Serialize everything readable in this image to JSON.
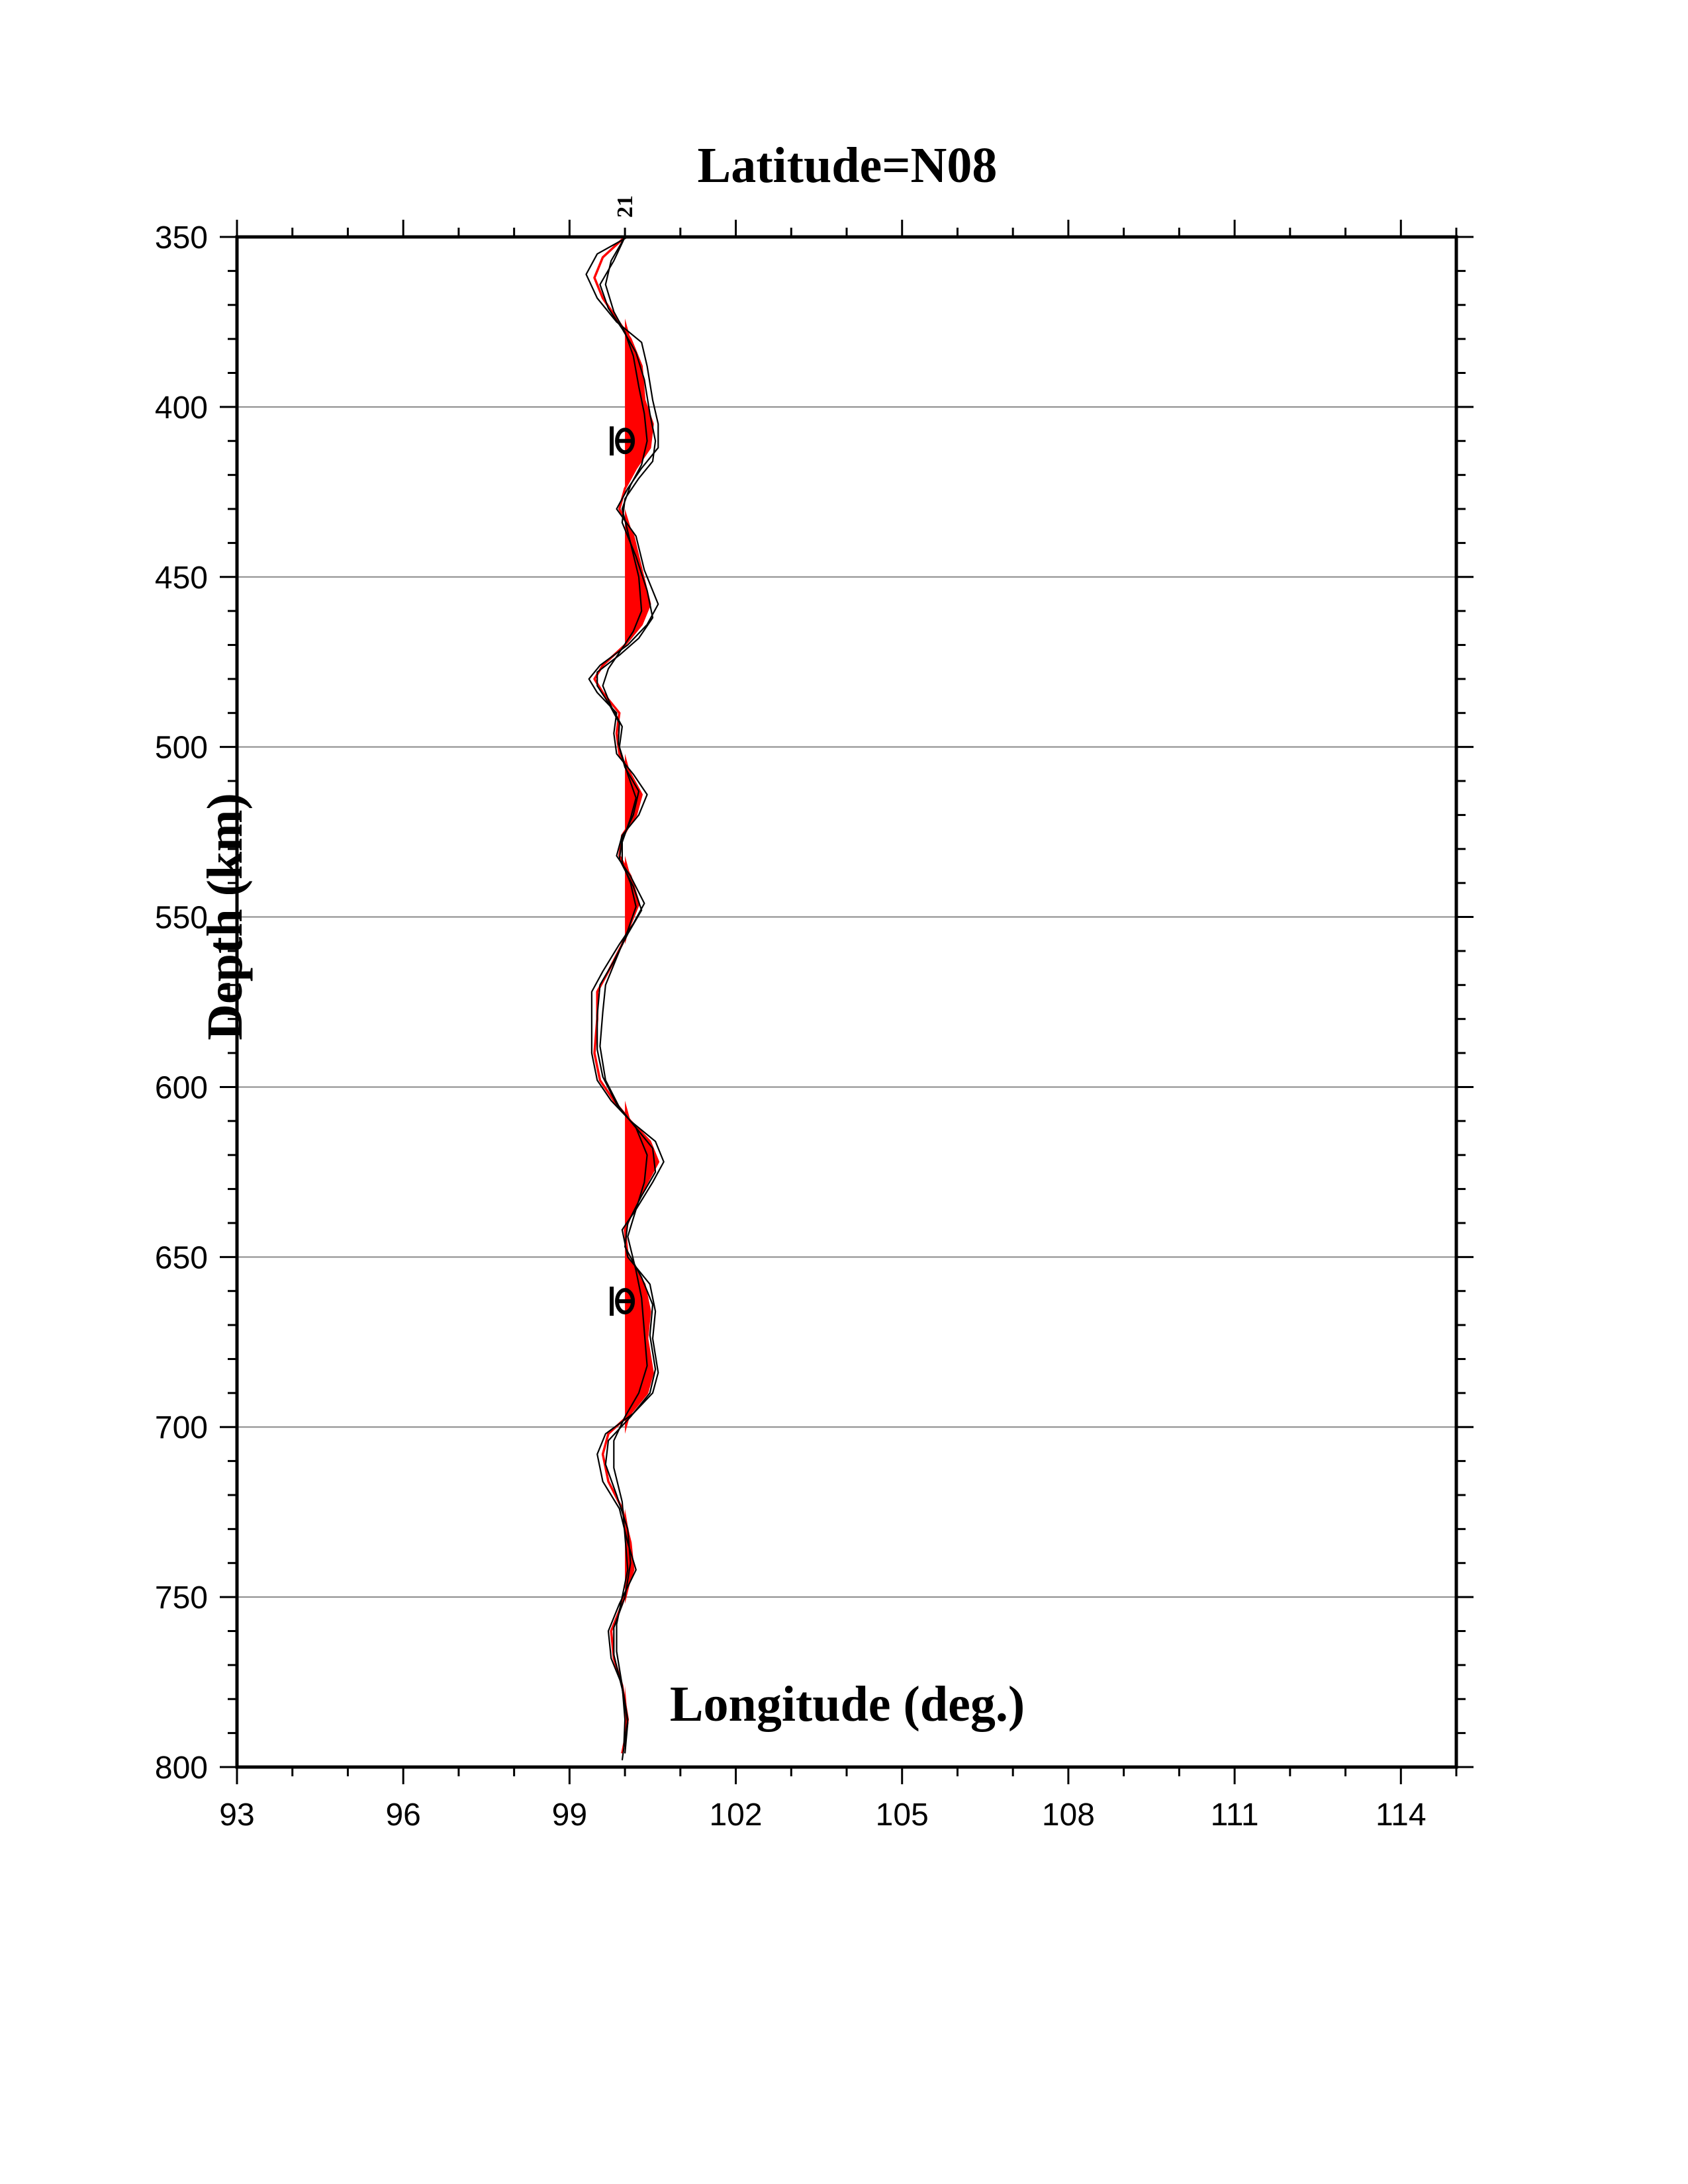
{
  "chart_data": {
    "type": "line",
    "title": "Latitude=N08",
    "xlabel": "Longitude (deg.)",
    "ylabel": "Depth (km)",
    "xlim": [
      93,
      115
    ],
    "ylim": [
      350,
      800
    ],
    "y_inverted": true,
    "x_ticks": [
      93,
      96,
      99,
      102,
      105,
      108,
      111,
      114
    ],
    "y_ticks": [
      350,
      400,
      450,
      500,
      550,
      600,
      650,
      700,
      750,
      800
    ],
    "grid": "horizontal",
    "trace_label": "21",
    "trace_baseline_longitude": 100,
    "fill_color": "#ff0000",
    "series": [
      {
        "color": "#ff0000",
        "points": [
          [
            100,
            350
          ],
          [
            99.6,
            356
          ],
          [
            99.45,
            362
          ],
          [
            99.6,
            368
          ],
          [
            99.85,
            374
          ],
          [
            100.1,
            380
          ],
          [
            100.3,
            388
          ],
          [
            100.35,
            398
          ],
          [
            100.5,
            405
          ],
          [
            100.45,
            412
          ],
          [
            100.2,
            418
          ],
          [
            100.0,
            424
          ],
          [
            99.9,
            430
          ],
          [
            100.15,
            438
          ],
          [
            100.3,
            448
          ],
          [
            100.45,
            458
          ],
          [
            100.3,
            464
          ],
          [
            100.0,
            470
          ],
          [
            99.6,
            476
          ],
          [
            99.45,
            480
          ],
          [
            99.6,
            484
          ],
          [
            99.9,
            490
          ],
          [
            99.85,
            496
          ],
          [
            99.9,
            502
          ],
          [
            100.1,
            508
          ],
          [
            100.3,
            514
          ],
          [
            100.2,
            520
          ],
          [
            99.95,
            526
          ],
          [
            99.9,
            532
          ],
          [
            100.1,
            538
          ],
          [
            100.25,
            546
          ],
          [
            100.1,
            552
          ],
          [
            99.95,
            558
          ],
          [
            99.7,
            566
          ],
          [
            99.5,
            572
          ],
          [
            99.5,
            580
          ],
          [
            99.45,
            590
          ],
          [
            99.55,
            598
          ],
          [
            99.8,
            604
          ],
          [
            100.1,
            610
          ],
          [
            100.45,
            616
          ],
          [
            100.6,
            622
          ],
          [
            100.4,
            628
          ],
          [
            100.15,
            636
          ],
          [
            100.0,
            642
          ],
          [
            100.05,
            650
          ],
          [
            100.35,
            658
          ],
          [
            100.45,
            666
          ],
          [
            100.4,
            674
          ],
          [
            100.5,
            684
          ],
          [
            100.4,
            690
          ],
          [
            100.1,
            696
          ],
          [
            99.7,
            702
          ],
          [
            99.6,
            708
          ],
          [
            99.7,
            716
          ],
          [
            99.95,
            724
          ],
          [
            100.1,
            734
          ],
          [
            100.15,
            742
          ],
          [
            99.95,
            752
          ],
          [
            99.75,
            760
          ],
          [
            99.8,
            768
          ],
          [
            99.95,
            776
          ],
          [
            100.05,
            786
          ],
          [
            100.0,
            792
          ],
          [
            99.95,
            796
          ]
        ]
      },
      {
        "color": "#000000",
        "points": [
          [
            100.05,
            350
          ],
          [
            99.5,
            355
          ],
          [
            99.3,
            361
          ],
          [
            99.5,
            368
          ],
          [
            99.85,
            375
          ],
          [
            100.3,
            381
          ],
          [
            100.4,
            388
          ],
          [
            100.5,
            398
          ],
          [
            100.6,
            405
          ],
          [
            100.6,
            412
          ],
          [
            100.3,
            418
          ],
          [
            100.05,
            424
          ],
          [
            99.85,
            430
          ],
          [
            100.2,
            438
          ],
          [
            100.35,
            448
          ],
          [
            100.6,
            458
          ],
          [
            100.4,
            464
          ],
          [
            100.05,
            470
          ],
          [
            99.55,
            476
          ],
          [
            99.35,
            480
          ],
          [
            99.5,
            484
          ],
          [
            99.85,
            490
          ],
          [
            99.8,
            496
          ],
          [
            99.85,
            502
          ],
          [
            100.15,
            508
          ],
          [
            100.4,
            514
          ],
          [
            100.25,
            520
          ],
          [
            99.95,
            526
          ],
          [
            99.85,
            532
          ],
          [
            100.1,
            538
          ],
          [
            100.35,
            546
          ],
          [
            100.15,
            552
          ],
          [
            99.9,
            558
          ],
          [
            99.6,
            566
          ],
          [
            99.4,
            572
          ],
          [
            99.4,
            580
          ],
          [
            99.4,
            590
          ],
          [
            99.5,
            598
          ],
          [
            99.75,
            604
          ],
          [
            100.1,
            610
          ],
          [
            100.55,
            616
          ],
          [
            100.7,
            622
          ],
          [
            100.5,
            628
          ],
          [
            100.2,
            636
          ],
          [
            99.95,
            642
          ],
          [
            100.05,
            650
          ],
          [
            100.45,
            658
          ],
          [
            100.55,
            666
          ],
          [
            100.5,
            674
          ],
          [
            100.6,
            684
          ],
          [
            100.5,
            690
          ],
          [
            100.15,
            696
          ],
          [
            99.65,
            702
          ],
          [
            99.5,
            708
          ],
          [
            99.6,
            716
          ],
          [
            99.9,
            724
          ],
          [
            100.05,
            734
          ],
          [
            100.2,
            742
          ],
          [
            99.9,
            752
          ],
          [
            99.7,
            760
          ],
          [
            99.75,
            768
          ],
          [
            99.95,
            776
          ],
          [
            100.05,
            786
          ],
          [
            100.0,
            792
          ],
          [
            99.95,
            798
          ]
        ]
      },
      {
        "color": "#000000",
        "points": [
          [
            100.0,
            350
          ],
          [
            99.75,
            357
          ],
          [
            99.65,
            364
          ],
          [
            99.8,
            372
          ],
          [
            100.0,
            378
          ],
          [
            100.15,
            385
          ],
          [
            100.25,
            394
          ],
          [
            100.35,
            402
          ],
          [
            100.4,
            410
          ],
          [
            100.3,
            417
          ],
          [
            100.1,
            423
          ],
          [
            99.95,
            430
          ],
          [
            100.1,
            440
          ],
          [
            100.25,
            450
          ],
          [
            100.3,
            460
          ],
          [
            100.15,
            466
          ],
          [
            99.95,
            471
          ],
          [
            99.7,
            477
          ],
          [
            99.6,
            482
          ],
          [
            99.75,
            488
          ],
          [
            99.95,
            494
          ],
          [
            99.9,
            500
          ],
          [
            100.05,
            508
          ],
          [
            100.2,
            515
          ],
          [
            100.1,
            521
          ],
          [
            99.95,
            528
          ],
          [
            99.95,
            534
          ],
          [
            100.1,
            540
          ],
          [
            100.2,
            547
          ],
          [
            100.05,
            554
          ],
          [
            99.85,
            562
          ],
          [
            99.65,
            570
          ],
          [
            99.6,
            578
          ],
          [
            99.55,
            588
          ],
          [
            99.65,
            598
          ],
          [
            99.9,
            606
          ],
          [
            100.2,
            612
          ],
          [
            100.4,
            620
          ],
          [
            100.35,
            628
          ],
          [
            100.2,
            636
          ],
          [
            100.05,
            644
          ],
          [
            100.2,
            654
          ],
          [
            100.3,
            662
          ],
          [
            100.35,
            672
          ],
          [
            100.4,
            682
          ],
          [
            100.25,
            690
          ],
          [
            100.0,
            697
          ],
          [
            99.8,
            704
          ],
          [
            99.8,
            712
          ],
          [
            99.95,
            722
          ],
          [
            100.0,
            732
          ],
          [
            100.05,
            742
          ],
          [
            99.95,
            750
          ],
          [
            99.85,
            758
          ],
          [
            99.85,
            766
          ],
          [
            99.95,
            776
          ],
          [
            100.0,
            786
          ],
          [
            99.98,
            794
          ]
        ]
      },
      {
        "color": "#000000",
        "points": [
          [
            100.0,
            350
          ],
          [
            99.8,
            357
          ],
          [
            99.55,
            364
          ],
          [
            99.7,
            371
          ],
          [
            99.95,
            377
          ],
          [
            100.2,
            384
          ],
          [
            100.35,
            392
          ],
          [
            100.45,
            402
          ],
          [
            100.55,
            410
          ],
          [
            100.5,
            416
          ],
          [
            100.25,
            421
          ],
          [
            100.0,
            427
          ],
          [
            99.95,
            434
          ],
          [
            100.2,
            444
          ],
          [
            100.4,
            454
          ],
          [
            100.5,
            462
          ],
          [
            100.25,
            468
          ],
          [
            99.9,
            473
          ],
          [
            99.5,
            478
          ],
          [
            99.5,
            482
          ],
          [
            99.7,
            487
          ],
          [
            99.9,
            493
          ],
          [
            99.88,
            499
          ],
          [
            100.0,
            506
          ],
          [
            100.25,
            513
          ],
          [
            100.15,
            520
          ],
          [
            99.95,
            527
          ],
          [
            99.9,
            533
          ],
          [
            100.15,
            541
          ],
          [
            100.3,
            548
          ],
          [
            100.05,
            555
          ],
          [
            99.8,
            563
          ],
          [
            99.55,
            570
          ],
          [
            99.5,
            579
          ],
          [
            99.5,
            589
          ],
          [
            99.6,
            597
          ],
          [
            99.85,
            605
          ],
          [
            100.15,
            611
          ],
          [
            100.5,
            618
          ],
          [
            100.55,
            625
          ],
          [
            100.3,
            632
          ],
          [
            100.05,
            640
          ],
          [
            100.0,
            647
          ],
          [
            100.3,
            656
          ],
          [
            100.5,
            664
          ],
          [
            100.45,
            673
          ],
          [
            100.55,
            683
          ],
          [
            100.45,
            690
          ],
          [
            100.1,
            697
          ],
          [
            99.7,
            704
          ],
          [
            99.65,
            711
          ],
          [
            99.85,
            720
          ],
          [
            100.05,
            730
          ],
          [
            100.1,
            740
          ],
          [
            100.0,
            750
          ],
          [
            99.8,
            759
          ],
          [
            99.8,
            767
          ],
          [
            99.95,
            777
          ],
          [
            100.05,
            787
          ],
          [
            100.0,
            796
          ]
        ]
      }
    ],
    "markers": [
      {
        "symbol": "theta",
        "longitude": 100,
        "depth": 410
      },
      {
        "symbol": "theta",
        "longitude": 100,
        "depth": 663
      }
    ]
  }
}
